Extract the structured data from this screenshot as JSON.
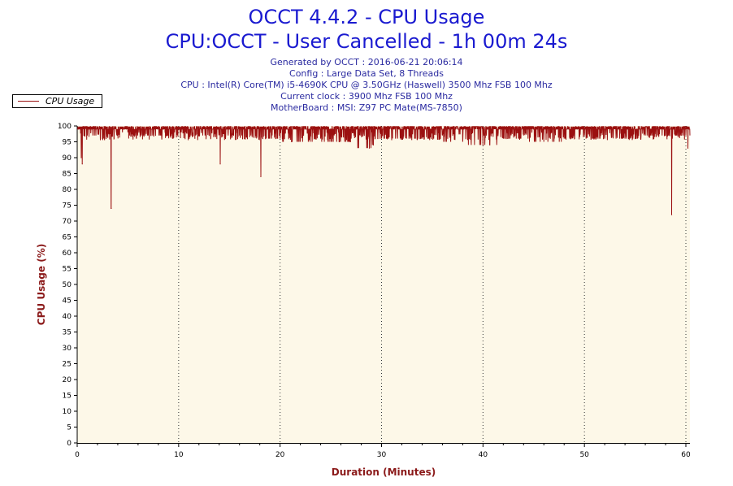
{
  "header": {
    "title": "OCCT 4.4.2 - CPU Usage",
    "subtitle": "CPU:OCCT - User Cancelled - 1h 00m 24s",
    "info_lines": [
      "Generated by OCCT : 2016-06-21 20:06:14",
      "Config : Large Data Set, 8 Threads",
      "CPU : Intel(R) Core(TM) i5-4690K CPU @ 3.50GHz (Haswell) 3500 Mhz FSB 100 Mhz",
      "Current clock : 3900 Mhz FSB 100 Mhz",
      "MotherBoard : MSI: Z97 PC Mate(MS-7850)"
    ]
  },
  "legend": {
    "label": "CPU Usage",
    "placement": "top-left"
  },
  "colors": {
    "series": "#9b1010",
    "plot_bg": "#fdf8e8",
    "title": "#1a1ad0",
    "axis_label": "#8b1a1a"
  },
  "chart_data": {
    "type": "line",
    "xlabel": "Duration (Minutes)",
    "ylabel": "CPU Usage (%)",
    "xlim": [
      0,
      60.4
    ],
    "ylim": [
      0,
      100
    ],
    "xticks": [
      0,
      10,
      20,
      30,
      40,
      50,
      60
    ],
    "yticks": [
      0,
      5,
      10,
      15,
      20,
      25,
      30,
      35,
      40,
      45,
      50,
      55,
      60,
      65,
      70,
      75,
      80,
      85,
      90,
      95,
      100
    ],
    "grid": {
      "x": "dotted",
      "y": "none"
    },
    "series": [
      {
        "name": "CPU Usage",
        "baseline": 99,
        "points": [
          [
            0.0,
            99
          ],
          [
            0.3,
            99
          ],
          [
            0.4,
            90
          ],
          [
            0.45,
            99
          ],
          [
            0.5,
            88
          ],
          [
            0.6,
            99
          ],
          [
            1.0,
            97
          ],
          [
            2.0,
            99
          ],
          [
            3.3,
            99
          ],
          [
            3.35,
            74
          ],
          [
            3.4,
            99
          ],
          [
            5.0,
            98
          ],
          [
            7.0,
            97
          ],
          [
            9.0,
            98
          ],
          [
            11.0,
            98
          ],
          [
            13.0,
            97
          ],
          [
            14.0,
            99
          ],
          [
            14.1,
            88
          ],
          [
            14.2,
            99
          ],
          [
            16.0,
            97
          ],
          [
            18.0,
            99
          ],
          [
            18.1,
            84
          ],
          [
            18.2,
            99
          ],
          [
            20.0,
            96
          ],
          [
            22.0,
            95
          ],
          [
            24.0,
            96
          ],
          [
            25.0,
            95
          ],
          [
            27.0,
            96
          ],
          [
            28.8,
            93
          ],
          [
            29.0,
            98
          ],
          [
            29.2,
            94
          ],
          [
            29.4,
            98
          ],
          [
            30.0,
            96
          ],
          [
            32.0,
            96
          ],
          [
            34.0,
            96
          ],
          [
            36.0,
            97
          ],
          [
            38.0,
            95
          ],
          [
            40.0,
            94
          ],
          [
            42.0,
            96
          ],
          [
            44.0,
            97
          ],
          [
            46.0,
            95
          ],
          [
            48.0,
            96
          ],
          [
            50.0,
            97
          ],
          [
            52.0,
            96
          ],
          [
            54.0,
            96
          ],
          [
            56.0,
            97
          ],
          [
            58.0,
            97
          ],
          [
            58.5,
            99
          ],
          [
            58.6,
            72
          ],
          [
            58.7,
            99
          ],
          [
            59.0,
            97
          ],
          [
            60.0,
            97
          ],
          [
            60.2,
            93
          ],
          [
            60.4,
            97
          ]
        ]
      }
    ]
  }
}
